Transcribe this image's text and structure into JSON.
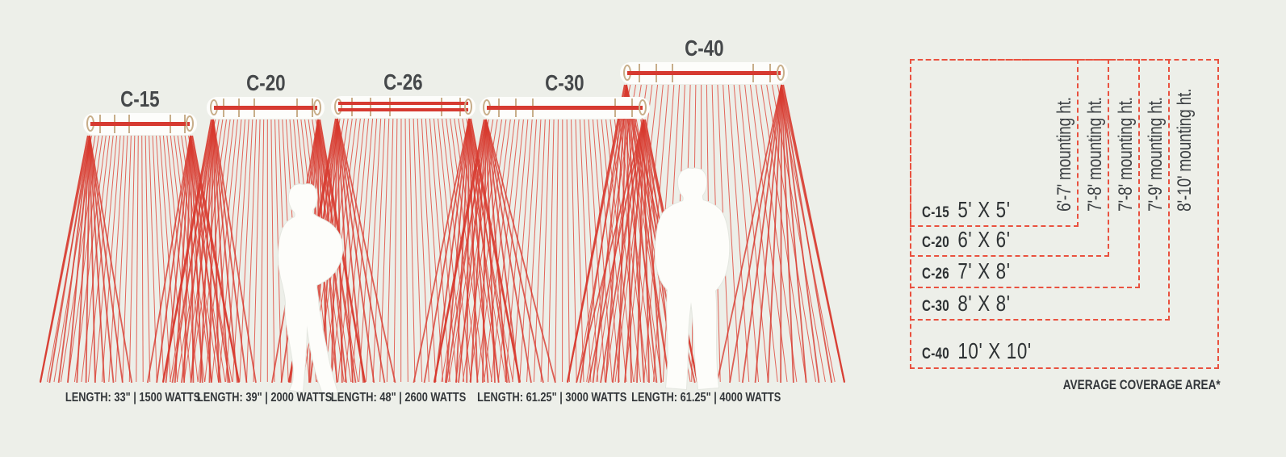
{
  "colors": {
    "background": "#edefe9",
    "ray_red": "#df4b40",
    "ray_red_bold": "#d7392e",
    "heater_element_red": "#d63a31",
    "dashed_box_red": "#e9513f",
    "bracket_tan": "#c8ae8a",
    "text_dark": "#33373a",
    "label_gray": "#45484a",
    "silhouette_white": "#fdfdfa"
  },
  "products": [
    {
      "name": "C-15",
      "length_label": "LENGTH: 33\" | 1500 WATTS"
    },
    {
      "name": "C-20",
      "length_label": "LENGTH: 39\" | 2000 WATTS"
    },
    {
      "name": "C-26",
      "length_label": "LENGTH: 48\" | 2600 WATTS"
    },
    {
      "name": "C-30",
      "length_label": "LENGTH: 61.25\" | 3000 WATTS"
    },
    {
      "name": "C-40",
      "length_label": "LENGTH: 61.25\" | 4000 WATTS"
    }
  ],
  "coverage": [
    {
      "model": "C-15",
      "area": "5' X 5'",
      "mounting": "6'-7' mounting ht."
    },
    {
      "model": "C-20",
      "area": "6' X 6'",
      "mounting": "7'-8' mounting ht."
    },
    {
      "model": "C-26",
      "area": "7' X 8'",
      "mounting": "7'-8' mounting ht."
    },
    {
      "model": "C-30",
      "area": "8' X 8'",
      "mounting": "7'-9' mounting ht."
    },
    {
      "model": "C-40",
      "area": "10' X 10'",
      "mounting": "8'-10' mounting ht."
    }
  ],
  "coverage_footnote": "AVERAGE COVERAGE AREA*"
}
